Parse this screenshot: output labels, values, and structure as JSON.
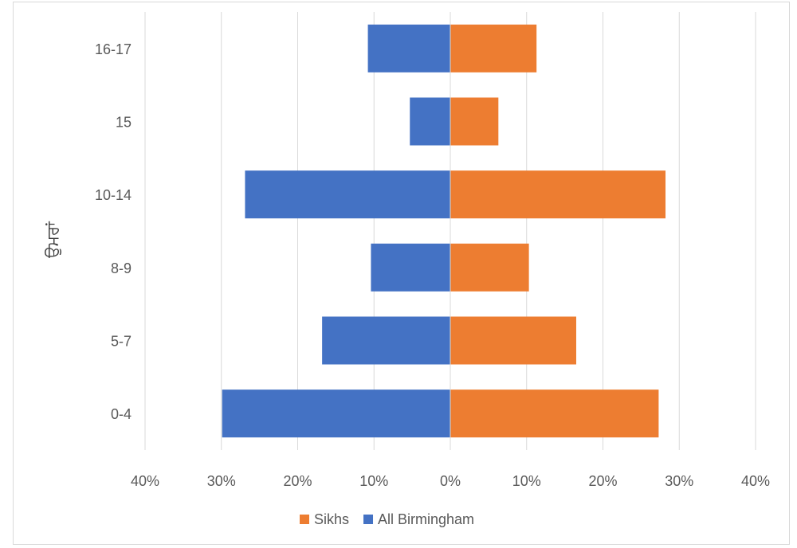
{
  "chart_data": {
    "type": "bar",
    "orientation": "horizontal",
    "title": "",
    "ylabel": "ਉਮਰਾਂ",
    "xlabel": "",
    "categories": [
      "0-4",
      "5-7",
      "8-9",
      "10-14",
      "15",
      "16-17"
    ],
    "xlim": [
      -40,
      40
    ],
    "xticks": [
      -40,
      -30,
      -20,
      -10,
      0,
      10,
      20,
      30,
      40
    ],
    "xtick_labels": [
      "40%",
      "30%",
      "20%",
      "10%",
      "0%",
      "10%",
      "20%",
      "30%",
      "40%"
    ],
    "series": [
      {
        "name": "Sikhs",
        "color": "#ED7D31",
        "values": [
          27.3,
          16.5,
          10.3,
          28.2,
          6.3,
          11.3
        ]
      },
      {
        "name": "All Birmingham",
        "color": "#4472C4",
        "values": [
          -29.9,
          -16.8,
          -10.4,
          -26.9,
          -5.3,
          -10.8
        ]
      }
    ],
    "legend": [
      "Sikhs",
      "All Birmingham"
    ],
    "legend_position": "bottom",
    "grid": true
  }
}
